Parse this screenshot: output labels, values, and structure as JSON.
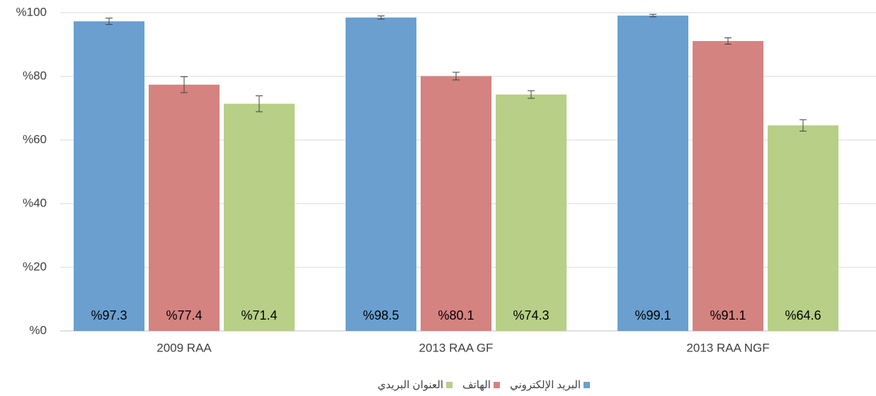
{
  "chart_data": {
    "type": "bar",
    "categories": [
      "2009 RAA",
      "2013 RAA GF",
      "2013 RAA NGF"
    ],
    "series": [
      {
        "name": "البريد الإلكتروني",
        "color": "#6a9fcf",
        "values": [
          97.3,
          98.5,
          99.1
        ],
        "value_labels": [
          "%97.3",
          "%98.5",
          "%99.1"
        ],
        "errors": [
          1,
          0.5,
          0.4
        ]
      },
      {
        "name": "الهاتف",
        "color": "#d48381",
        "values": [
          77.4,
          80.1,
          91.1
        ],
        "value_labels": [
          "%77.4",
          "%80.1",
          "%91.1"
        ],
        "errors": [
          2.5,
          1.2,
          1
        ]
      },
      {
        "name": "العنوان البريدي",
        "color": "#b7cf86",
        "values": [
          71.4,
          74.3,
          64.6
        ],
        "value_labels": [
          "%71.4",
          "%74.3",
          "%64.6"
        ],
        "errors": [
          2.5,
          1.2,
          1.8
        ]
      }
    ],
    "ylim": [
      0,
      100
    ],
    "yticks": [
      {
        "value": 0,
        "label": "%0"
      },
      {
        "value": 20,
        "label": "%20"
      },
      {
        "value": 40,
        "label": "%40"
      },
      {
        "value": 60,
        "label": "%60"
      },
      {
        "value": 80,
        "label": "%80"
      },
      {
        "value": 100,
        "label": "%100"
      }
    ],
    "grid": true,
    "legend": "bottom"
  }
}
